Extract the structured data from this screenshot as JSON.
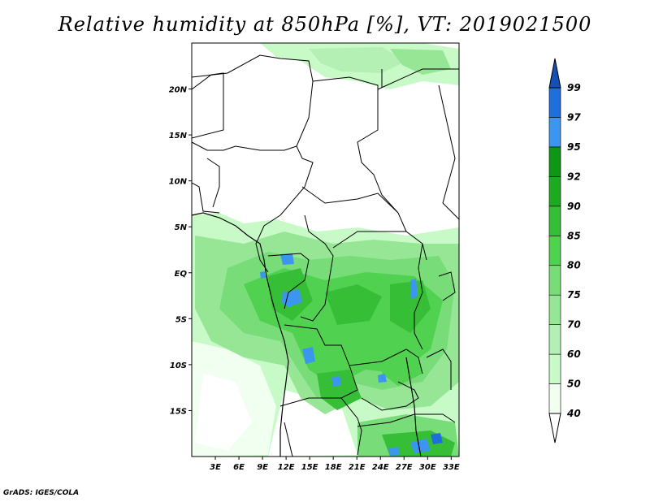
{
  "title": "Relative humidity at 850hPa [%], VT: 2019021500",
  "credit": "GrADS: IGES/COLA",
  "map": {
    "lon_range": [
      0,
      34
    ],
    "lat_range": [
      -20,
      25
    ],
    "lat_ticks": [
      {
        "value": 20,
        "label": "20N"
      },
      {
        "value": 15,
        "label": "15N"
      },
      {
        "value": 10,
        "label": "10N"
      },
      {
        "value": 5,
        "label": "5N"
      },
      {
        "value": 0,
        "label": "EQ"
      },
      {
        "value": -5,
        "label": "5S"
      },
      {
        "value": -10,
        "label": "10S"
      },
      {
        "value": -15,
        "label": "15S"
      }
    ],
    "lon_ticks": [
      {
        "value": 3,
        "label": "3E"
      },
      {
        "value": 6,
        "label": "6E"
      },
      {
        "value": 9,
        "label": "9E"
      },
      {
        "value": 12,
        "label": "12E"
      },
      {
        "value": 15,
        "label": "15E"
      },
      {
        "value": 18,
        "label": "18E"
      },
      {
        "value": 21,
        "label": "21E"
      },
      {
        "value": 24,
        "label": "24E"
      },
      {
        "value": 27,
        "label": "27E"
      },
      {
        "value": 30,
        "label": "30E"
      },
      {
        "value": 33,
        "label": "33E"
      }
    ]
  },
  "colorbar": {
    "levels": [
      {
        "label": "40",
        "color": "#f0fff0"
      },
      {
        "label": "50",
        "color": "#c8fac8"
      },
      {
        "label": "60",
        "color": "#b4f0b4"
      },
      {
        "label": "70",
        "color": "#96e696"
      },
      {
        "label": "75",
        "color": "#78dc78"
      },
      {
        "label": "80",
        "color": "#50d250"
      },
      {
        "label": "85",
        "color": "#37be37"
      },
      {
        "label": "90",
        "color": "#1eaa1e"
      },
      {
        "label": "92",
        "color": "#0f9614"
      },
      {
        "label": "95",
        "color": "#3c96f0"
      },
      {
        "label": "97",
        "color": "#1e6edc"
      },
      {
        "label": "99",
        "color": "#1450b4"
      }
    ]
  }
}
